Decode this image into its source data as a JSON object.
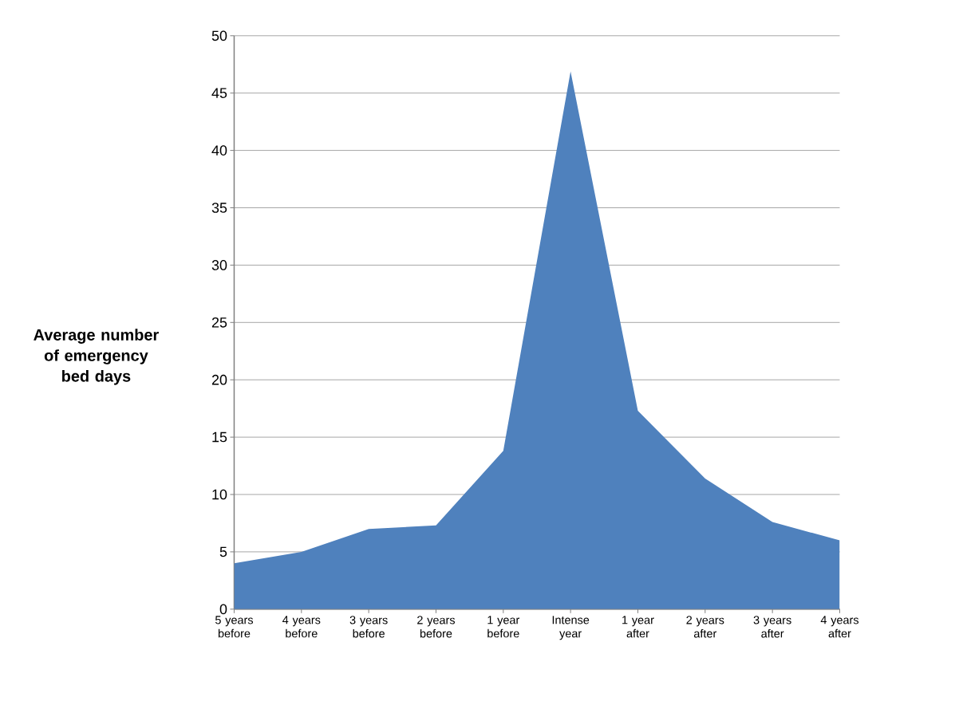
{
  "chart_data": {
    "type": "area",
    "ylabel": "Average number of emergency bed days",
    "categories": [
      "5 years before",
      "4 years before",
      "3 years before",
      "2 years before",
      "1 year before",
      "Intense year",
      "1 year after",
      "2 years after",
      "3 years after",
      "4 years after"
    ],
    "values": [
      4.0,
      5.0,
      7.0,
      7.3,
      13.8,
      46.9,
      17.3,
      11.4,
      7.6,
      6.0
    ],
    "color": "#4f81bd",
    "ylim": [
      0,
      50
    ],
    "yticks": [
      0,
      5,
      10,
      15,
      20,
      25,
      30,
      35,
      40,
      45,
      50
    ],
    "grid": "y"
  }
}
